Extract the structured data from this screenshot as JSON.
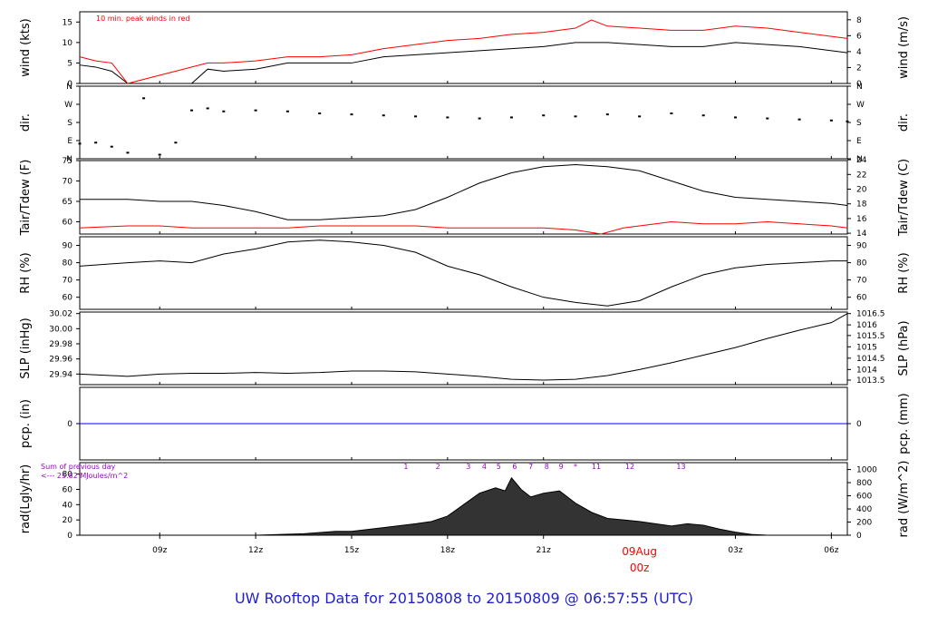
{
  "chart_data": {
    "type": "line",
    "title": "UW Rooftop Data for 20150808  to  20150809 @ 06:57:55  (UTC)",
    "x_axis": {
      "start_hour": 6.5,
      "end_hour": 30.5,
      "ticks": [
        {
          "hour": 9,
          "label": "09z"
        },
        {
          "hour": 12,
          "label": "12z"
        },
        {
          "hour": 15,
          "label": "15z"
        },
        {
          "hour": 18,
          "label": "18z"
        },
        {
          "hour": 21,
          "label": "21z"
        },
        {
          "hour": 27,
          "label": "03z"
        },
        {
          "hour": 30,
          "label": "06z"
        }
      ],
      "date_marker": {
        "hour": 24,
        "date_label": "09Aug",
        "time_label": "00z",
        "color": "#ff0000"
      }
    },
    "panels": [
      {
        "id": "wind",
        "left_label": "wind (kts)",
        "right_label": "wind (m/s)",
        "ylim": [
          0,
          17.5
        ],
        "left_ticks": [
          "0",
          "5",
          "10",
          "15"
        ],
        "left_tick_values": [
          0,
          5,
          10,
          15
        ],
        "right_ticks": [
          "0",
          "2",
          "4",
          "6",
          "8"
        ],
        "right_tick_values": [
          0,
          3.89,
          7.78,
          11.66,
          15.55
        ],
        "annotation": "10 min. peak winds in red",
        "annotation_color": "#ff0000",
        "series": [
          {
            "name": "",
            "color": "#000000",
            "x": [
              6.5,
              7.0,
              7.5,
              8.0,
              9.0,
              10.0,
              10.5,
              11.0,
              12.0,
              13.0,
              14.0,
              15.0,
              16.0,
              17.0,
              18.0,
              19.0,
              20.0,
              21.0,
              22.0,
              23.0,
              24.0,
              25.0,
              26.0,
              27.0,
              28.0,
              29.0,
              30.0,
              30.5
            ],
            "y": [
              4.5,
              4.0,
              3.0,
              0.0,
              0.0,
              0.0,
              3.5,
              3.0,
              3.5,
              5.0,
              5.0,
              5.0,
              6.5,
              7.0,
              7.5,
              8.0,
              8.5,
              9.0,
              10.0,
              10.0,
              9.5,
              9.0,
              9.0,
              10.0,
              9.5,
              9.0,
              8.0,
              7.5
            ]
          },
          {
            "name": "",
            "color": "#ff0000",
            "x": [
              6.5,
              7.0,
              7.5,
              8.0,
              10.5,
              11.0,
              12.0,
              13.0,
              14.0,
              15.0,
              16.0,
              17.0,
              18.0,
              19.0,
              20.0,
              21.0,
              22.0,
              22.5,
              23.0,
              24.0,
              25.0,
              26.0,
              27.0,
              28.0,
              29.0,
              30.0,
              30.5
            ],
            "y": [
              6.5,
              5.5,
              5.0,
              0.0,
              5.0,
              5.0,
              5.5,
              6.5,
              6.5,
              7.0,
              8.5,
              9.5,
              10.5,
              11.0,
              12.0,
              12.5,
              13.5,
              15.5,
              14.0,
              13.5,
              13.0,
              13.0,
              14.0,
              13.5,
              12.5,
              11.5,
              11.0
            ]
          }
        ]
      },
      {
        "id": "dir",
        "left_label": "dir.",
        "right_label": "dir.",
        "ylim": [
          0,
          360
        ],
        "left_ticks": [
          "N",
          "E",
          "S",
          "W",
          "N"
        ],
        "left_tick_values": [
          0,
          90,
          180,
          270,
          360
        ],
        "right_ticks": [
          "N",
          "E",
          "S",
          "W",
          "N"
        ],
        "right_tick_values": [
          0,
          90,
          180,
          270,
          360
        ],
        "series": [
          {
            "name": "",
            "color": "#000000",
            "style": "points",
            "x": [
              6.5,
              7.0,
              7.5,
              8.0,
              8.5,
              9.0,
              9.5,
              10.0,
              10.5,
              11.0,
              12.0,
              13.0,
              14.0,
              15.0,
              16.0,
              17.0,
              18.0,
              19.0,
              20.0,
              21.0,
              22.0,
              23.0,
              24.0,
              25.0,
              26.0,
              27.0,
              28.0,
              29.0,
              30.0,
              30.5
            ],
            "y": [
              75,
              80,
              60,
              30,
              300,
              20,
              80,
              240,
              250,
              235,
              240,
              235,
              225,
              220,
              215,
              210,
              205,
              200,
              205,
              215,
              210,
              220,
              210,
              225,
              215,
              205,
              200,
              195,
              190,
              185
            ]
          }
        ]
      },
      {
        "id": "temp",
        "left_label": "Tair/Tdew (F)",
        "right_label": "Tair/Tdew (C)",
        "ylim": [
          57,
          75
        ],
        "left_ticks": [
          "60",
          "65",
          "70",
          "75"
        ],
        "left_tick_values": [
          60,
          65,
          70,
          75
        ],
        "right_ticks": [
          "14",
          "16",
          "18",
          "20",
          "22",
          "24"
        ],
        "right_tick_values": [
          57.2,
          60.8,
          64.4,
          68.0,
          71.6,
          75.2
        ],
        "series": [
          {
            "name": "",
            "color": "#000000",
            "x": [
              6.5,
              8.0,
              9.0,
              10.0,
              11.0,
              12.0,
              13.0,
              14.0,
              15.0,
              16.0,
              17.0,
              18.0,
              19.0,
              20.0,
              21.0,
              22.0,
              23.0,
              24.0,
              25.0,
              26.0,
              27.0,
              28.0,
              29.0,
              30.0,
              30.5
            ],
            "y": [
              65.5,
              65.5,
              65.0,
              65.0,
              64.0,
              62.5,
              60.5,
              60.5,
              61.0,
              61.5,
              63.0,
              66.0,
              69.5,
              72.0,
              73.5,
              74.0,
              73.5,
              72.5,
              70.0,
              67.5,
              66.0,
              65.5,
              65.0,
              64.5,
              64.0
            ]
          },
          {
            "name": "",
            "color": "#ff0000",
            "x": [
              6.5,
              8.0,
              9.0,
              10.0,
              11.0,
              12.0,
              13.0,
              14.0,
              15.0,
              16.0,
              17.0,
              18.0,
              19.0,
              20.0,
              21.0,
              22.0,
              22.8,
              23.5,
              24.0,
              25.0,
              26.0,
              27.0,
              28.0,
              29.0,
              30.0,
              30.5
            ],
            "y": [
              58.5,
              59.0,
              59.0,
              58.5,
              58.5,
              58.5,
              58.5,
              59.0,
              59.0,
              59.0,
              59.0,
              58.5,
              58.5,
              58.5,
              58.5,
              58.0,
              57.0,
              58.5,
              59.0,
              60.0,
              59.5,
              59.5,
              60.0,
              59.5,
              59.0,
              58.5
            ]
          }
        ]
      },
      {
        "id": "rh",
        "left_label": "RH (%)",
        "right_label": "RH (%)",
        "ylim": [
          53,
          95
        ],
        "left_ticks": [
          "60",
          "70",
          "80",
          "90"
        ],
        "left_tick_values": [
          60,
          70,
          80,
          90
        ],
        "right_ticks": [
          "60",
          "70",
          "80",
          "90"
        ],
        "right_tick_values": [
          60,
          70,
          80,
          90
        ],
        "series": [
          {
            "name": "",
            "color": "#000000",
            "x": [
              6.5,
              8.0,
              9.0,
              10.0,
              11.0,
              12.0,
              13.0,
              14.0,
              15.0,
              16.0,
              17.0,
              18.0,
              19.0,
              20.0,
              21.0,
              22.0,
              23.0,
              24.0,
              25.0,
              26.0,
              27.0,
              28.0,
              29.0,
              30.0,
              30.5
            ],
            "y": [
              78,
              80,
              81,
              80,
              85,
              88,
              92,
              93,
              92,
              90,
              86,
              78,
              73,
              66,
              60,
              57,
              55,
              58,
              66,
              73,
              77,
              79,
              80,
              81,
              81
            ]
          }
        ]
      },
      {
        "id": "slp",
        "left_label": "SLP (inHg)",
        "right_label": "SLP (hPa)",
        "ylim": [
          29.926,
          30.022
        ],
        "left_ticks": [
          "29.94",
          "29.96",
          "29.98",
          "30.00",
          "30.02"
        ],
        "left_tick_values": [
          29.94,
          29.96,
          29.98,
          30.0,
          30.02
        ],
        "right_ticks": [
          "1013.5",
          "1014",
          "1014.5",
          "1015",
          "1015.5",
          "1016",
          "1016.5"
        ],
        "right_tick_values": [
          29.932,
          29.946,
          29.961,
          29.976,
          29.991,
          30.005,
          30.02
        ],
        "series": [
          {
            "name": "",
            "color": "#000000",
            "x": [
              6.5,
              8.0,
              9.0,
              10.0,
              11.0,
              12.0,
              13.0,
              14.0,
              15.0,
              16.0,
              17.0,
              18.0,
              19.0,
              20.0,
              21.0,
              22.0,
              23.0,
              24.0,
              25.0,
              26.0,
              27.0,
              28.0,
              29.0,
              30.0,
              30.5
            ],
            "y": [
              29.94,
              29.937,
              29.94,
              29.941,
              29.941,
              29.942,
              29.941,
              29.942,
              29.944,
              29.944,
              29.943,
              29.94,
              29.937,
              29.933,
              29.932,
              29.933,
              29.938,
              29.946,
              29.955,
              29.965,
              29.975,
              29.987,
              29.998,
              30.008,
              30.02
            ]
          }
        ]
      },
      {
        "id": "pcp",
        "left_label": "pcp. (in)",
        "right_label": "pcp. (mm)",
        "ylim": [
          -1,
          1
        ],
        "left_ticks": [
          "0"
        ],
        "left_tick_values": [
          0
        ],
        "right_ticks": [
          "0"
        ],
        "right_tick_values": [
          0
        ],
        "series": [
          {
            "name": "",
            "color": "#0000ff",
            "x": [
              6.5,
              30.5
            ],
            "y": [
              0,
              0
            ]
          }
        ]
      },
      {
        "id": "rad",
        "left_label": "rad(Lgly/hr)",
        "right_label": "rad (W/m^2)",
        "ylim": [
          0,
          95
        ],
        "left_ticks": [
          "0",
          "20",
          "40",
          "60",
          "80"
        ],
        "left_tick_values": [
          0,
          20,
          40,
          60,
          80
        ],
        "right_ticks": [
          "0",
          "200",
          "400",
          "600",
          "800",
          "1000"
        ],
        "right_tick_values": [
          0,
          17.2,
          34.4,
          51.6,
          68.8,
          86.0
        ],
        "annotation_lines": [
          "Sum of previous day",
          "<--- 25.82 MJoules/m^2"
        ],
        "annotation_color": "#9900cc",
        "hour_labels": [
          {
            "hour": 16.7,
            "label": "1"
          },
          {
            "hour": 17.7,
            "label": "2"
          },
          {
            "hour": 18.65,
            "label": "3"
          },
          {
            "hour": 19.15,
            "label": "4"
          },
          {
            "hour": 19.6,
            "label": "5"
          },
          {
            "hour": 20.1,
            "label": "6"
          },
          {
            "hour": 20.6,
            "label": "7"
          },
          {
            "hour": 21.1,
            "label": "8"
          },
          {
            "hour": 21.55,
            "label": "9"
          },
          {
            "hour": 22.0,
            "label": "*"
          },
          {
            "hour": 22.65,
            "label": "11"
          },
          {
            "hour": 23.7,
            "label": "12"
          },
          {
            "hour": 25.3,
            "label": "13"
          }
        ],
        "hour_label_color": "#9900cc",
        "series": [
          {
            "name": "",
            "color": "#000000",
            "style": "area",
            "x": [
              6.5,
              12.0,
              13.5,
              14.5,
              15.0,
              16.0,
              17.0,
              17.5,
              18.0,
              18.5,
              19.0,
              19.5,
              19.8,
              20.0,
              20.3,
              20.6,
              21.0,
              21.5,
              22.0,
              22.5,
              23.0,
              23.5,
              24.0,
              24.5,
              25.0,
              25.5,
              26.0,
              26.5,
              27.0,
              27.5,
              28.0,
              30.5
            ],
            "y": [
              0,
              0,
              2,
              5,
              5,
              10,
              15,
              18,
              25,
              40,
              55,
              62,
              58,
              75,
              60,
              50,
              55,
              58,
              42,
              30,
              22,
              20,
              18,
              15,
              12,
              15,
              13,
              8,
              4,
              1,
              0,
              0
            ]
          }
        ]
      }
    ]
  }
}
